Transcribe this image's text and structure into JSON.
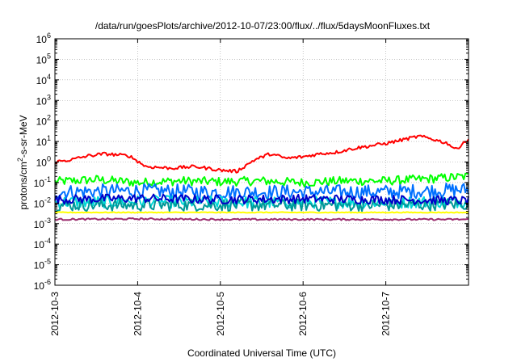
{
  "chart_data": {
    "type": "line",
    "title": "/data/run/goesPlots/archive/2012-10-07/23:00/flux/../flux/5daysMoonFluxes.txt",
    "xlabel": "Coordinated Universal Time (UTC)",
    "ylabel": "protons/cm²-s-sr-MeV",
    "ylabel_parts": {
      "pre": "protons/cm",
      "sup": "2",
      "post": "-s-sr-MeV"
    },
    "y_scale": "log",
    "ylim_exp": [
      -6,
      6
    ],
    "y_ticks": [
      {
        "base": "10",
        "exp": "-6"
      },
      {
        "base": "10",
        "exp": "-5"
      },
      {
        "base": "10",
        "exp": "-4"
      },
      {
        "base": "10",
        "exp": "-3"
      },
      {
        "base": "10",
        "exp": "-2"
      },
      {
        "base": "10",
        "exp": "-1"
      },
      {
        "base": "10",
        "exp": "0"
      },
      {
        "base": "10",
        "exp": "1"
      },
      {
        "base": "10",
        "exp": "2"
      },
      {
        "base": "10",
        "exp": "3"
      },
      {
        "base": "10",
        "exp": "4"
      },
      {
        "base": "10",
        "exp": "5"
      },
      {
        "base": "10",
        "exp": "6"
      }
    ],
    "x_range": [
      "2012-10-03",
      "2012-10-08"
    ],
    "x_ticks": [
      "2012-10-3",
      "2012-10-4",
      "2012-10-5",
      "2012-10-6",
      "2012-10-7"
    ],
    "grid": true,
    "legend": "none",
    "series": [
      {
        "color": "#ff0000",
        "x_days": [
          0,
          0.2,
          0.4,
          0.6,
          0.9,
          1.1,
          1.4,
          1.7,
          2.0,
          2.2,
          2.4,
          2.6,
          2.8,
          3.0,
          3.2,
          3.4,
          3.6,
          3.8,
          4.0,
          4.2,
          4.4,
          4.5,
          4.6,
          4.75,
          4.85,
          4.95,
          5.0
        ],
        "values": [
          1.0,
          1.3,
          2.0,
          2.5,
          2.0,
          0.6,
          0.5,
          0.6,
          0.4,
          0.35,
          1.2,
          2.5,
          1.5,
          1.8,
          2.5,
          3.0,
          4.5,
          6.0,
          8.0,
          12,
          18,
          15,
          12,
          8.0,
          4.0,
          10,
          11
        ]
      },
      {
        "color": "#00ff00",
        "x_days": [
          0,
          0.5,
          1.0,
          1.5,
          2.0,
          2.5,
          3.0,
          3.5,
          4.0,
          4.5,
          5.0
        ],
        "values": [
          0.11,
          0.14,
          0.1,
          0.12,
          0.11,
          0.12,
          0.1,
          0.12,
          0.12,
          0.15,
          0.2
        ]
      },
      {
        "color": "#0070ff",
        "x_days": [
          0,
          1.0,
          2.0,
          3.0,
          4.0,
          5.0
        ],
        "values": [
          0.035,
          0.04,
          0.035,
          0.035,
          0.035,
          0.045
        ]
      },
      {
        "color": "#00d8d8",
        "x_days": [
          0,
          1.0,
          2.0,
          3.0,
          4.0,
          5.0
        ],
        "values": [
          0.011,
          0.012,
          0.011,
          0.011,
          0.011,
          0.012
        ]
      },
      {
        "color": "#0000c8",
        "x_days": [
          0,
          1.0,
          2.0,
          3.0,
          4.0,
          5.0
        ],
        "values": [
          0.015,
          0.017,
          0.015,
          0.016,
          0.015,
          0.013
        ]
      },
      {
        "color": "#009898",
        "x_days": [
          0,
          1.0,
          2.0,
          3.0,
          4.0,
          5.0
        ],
        "values": [
          0.008,
          0.008,
          0.008,
          0.008,
          0.008,
          0.009
        ]
      },
      {
        "color": "#ffff00",
        "x_days": [
          0,
          1.0,
          2.0,
          3.0,
          4.0,
          5.0
        ],
        "values": [
          0.0035,
          0.0035,
          0.0035,
          0.0035,
          0.0035,
          0.0035
        ]
      },
      {
        "color": "#9b2d6e",
        "x_days": [
          0,
          1.0,
          2.0,
          3.0,
          4.0,
          5.0
        ],
        "values": [
          0.0016,
          0.0017,
          0.0016,
          0.0016,
          0.0016,
          0.0016
        ]
      }
    ]
  }
}
